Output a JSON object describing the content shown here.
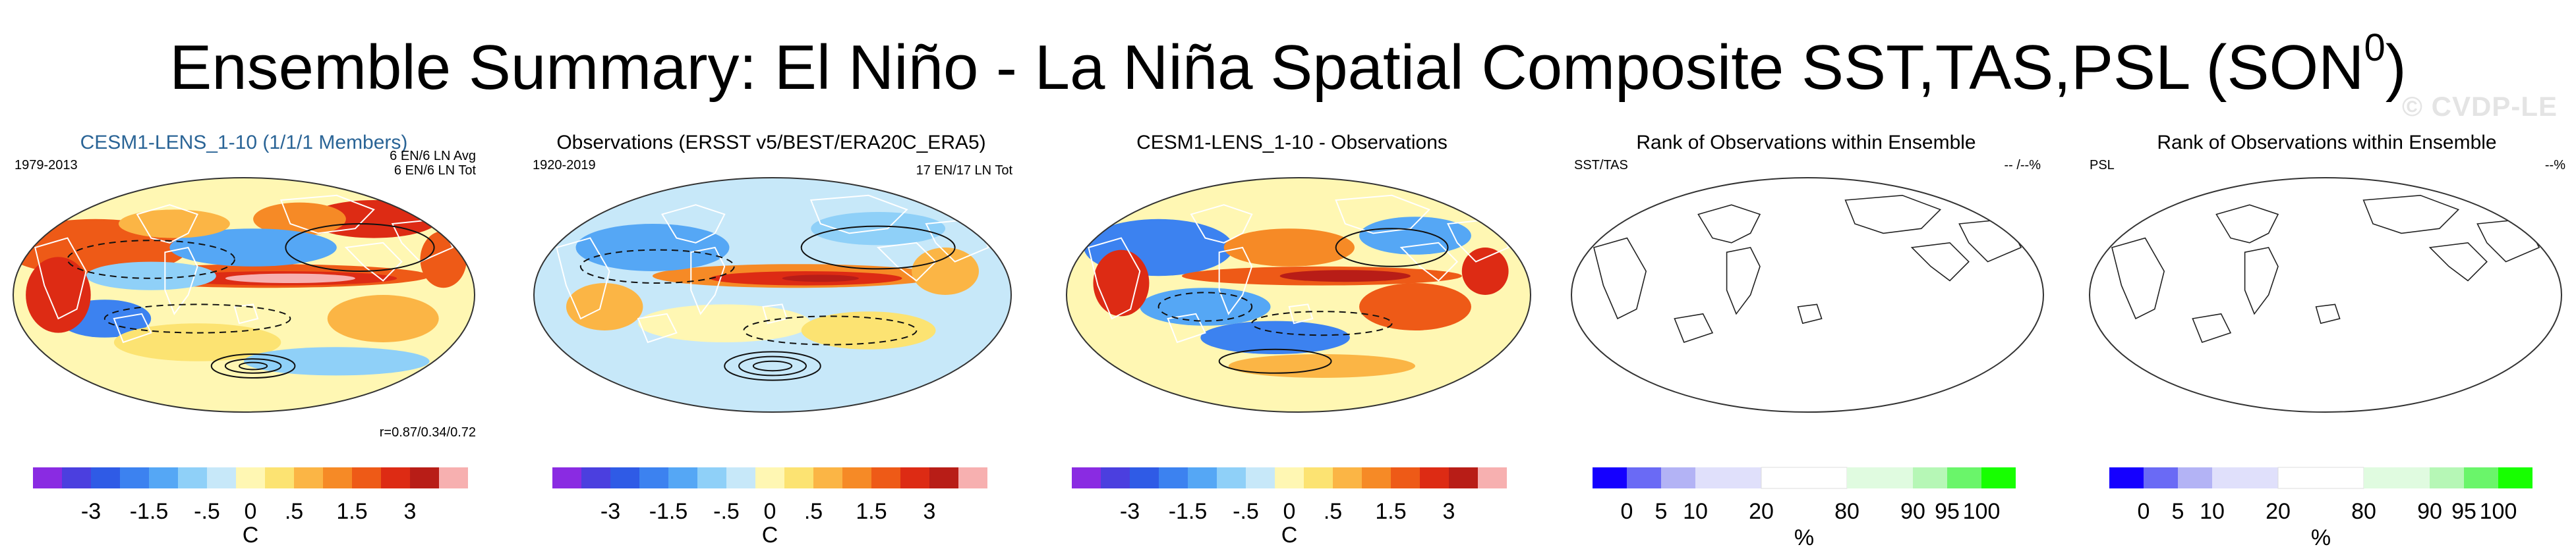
{
  "title": {
    "main": "Ensemble Summary: El Niño - La Niña Spatial Composite SST,TAS,PSL (SON",
    "sup": "0",
    "close": ")"
  },
  "watermark": "© CVDP-LE",
  "colors": {
    "diverging": [
      "#8a2be2",
      "#4b3fdf",
      "#2f5be6",
      "#3c82f0",
      "#55a7f5",
      "#8fd0f8",
      "#c7e8f9",
      "#fff7b3",
      "#fce372",
      "#fbb545",
      "#f68a26",
      "#ee5a17",
      "#dd2b14",
      "#b81d17",
      "#f7b0b0"
    ],
    "rank": [
      "#1500ff",
      "#6a6af5",
      "#b3b3f5",
      "#e0e0fb",
      "#ffffff",
      "#e0fbe0",
      "#b6f7b6",
      "#6af56a",
      "#17ff00"
    ]
  },
  "panels": [
    {
      "title": "CESM1-LENS_1-10 (1/1/1 Members)",
      "left_label": "1979-2013",
      "right_label_1": "6 EN/6 LN Avg",
      "right_label_2": "6 EN/6 LN Tot",
      "bottom_right": "r=0.87/0.34/0.72",
      "fill": "sst"
    },
    {
      "title": "Observations (ERSST v5/BEST/ERA20C_ERA5)",
      "left_label": "1920-2019",
      "right_label_1": "17 EN/17 LN Tot",
      "fill": "sst"
    },
    {
      "title": "CESM1-LENS_1-10 - Observations",
      "fill": "diff"
    },
    {
      "title": "Rank of Observations within Ensemble",
      "left_label": "SST/TAS",
      "right_label_1": "-- /--%",
      "fill": "blank"
    },
    {
      "title": "Rank of Observations within Ensemble",
      "left_label": "PSL",
      "right_label_1": "--%",
      "fill": "blank"
    }
  ],
  "chart_data": [
    {
      "type": "heatmap",
      "title": "CESM1-LENS_1-10 (1/1/1 Members)",
      "variables": [
        "SST",
        "TAS",
        "PSL"
      ],
      "period": "1979-2013",
      "events": "6 EN/6 LN",
      "pattern_correlation": "r=0.87/0.34/0.72",
      "colorbar": {
        "ticks": [
          "-3",
          "-1.5",
          "-.5",
          "0",
          ".5",
          "1.5",
          "3"
        ],
        "unit": "C",
        "levels": [
          -4,
          -3,
          -2,
          -1.5,
          -1,
          -0.5,
          -0.25,
          0,
          0.25,
          0.5,
          1,
          1.5,
          2,
          3,
          4
        ]
      }
    },
    {
      "type": "heatmap",
      "title": "Observations (ERSST v5/BEST/ERA20C_ERA5)",
      "period": "1920-2019",
      "events": "17 EN/17 LN Tot",
      "colorbar": {
        "ticks": [
          "-3",
          "-1.5",
          "-.5",
          "0",
          ".5",
          "1.5",
          "3"
        ],
        "unit": "C"
      }
    },
    {
      "type": "heatmap",
      "title": "CESM1-LENS_1-10 - Observations",
      "colorbar": {
        "ticks": [
          "-3",
          "-1.5",
          "-.5",
          "0",
          ".5",
          "1.5",
          "3"
        ],
        "unit": "C"
      }
    },
    {
      "type": "heatmap",
      "title": "Rank of Observations within Ensemble",
      "variable_label": "SST/TAS",
      "colorbar": {
        "ticks": [
          "0",
          "5",
          "10",
          "20",
          "80",
          "90",
          "95",
          "100"
        ],
        "unit": "%"
      }
    },
    {
      "type": "heatmap",
      "title": "Rank of Observations within Ensemble",
      "variable_label": "PSL",
      "colorbar": {
        "ticks": [
          "0",
          "5",
          "10",
          "20",
          "80",
          "90",
          "95",
          "100"
        ],
        "unit": "%"
      }
    }
  ]
}
